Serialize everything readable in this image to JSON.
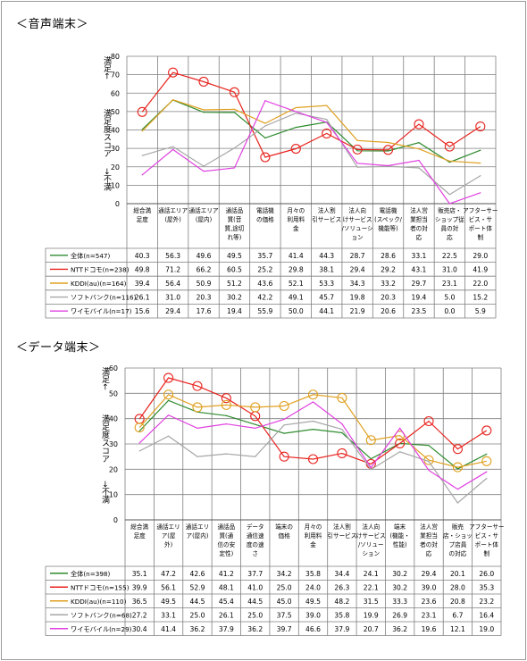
{
  "page": {
    "frame_color": "#9a9a9a"
  },
  "charts": [
    {
      "title": "＜音声端末＞",
      "ylabel_top": "満足←",
      "ylabel_mid": "満足度スコア",
      "ylabel_bot": "→不満",
      "categories": [
        [
          "総合満",
          "足度"
        ],
        [
          "通話エリア",
          "(屋外)"
        ],
        [
          "通話エリア",
          "(屋内)"
        ],
        [
          "通話品",
          "質(音",
          "質,途切",
          "れ等)"
        ],
        [
          "電話機",
          "の価格"
        ],
        [
          "月々の",
          "利用料",
          "金"
        ],
        [
          "法人割",
          "引サービス"
        ],
        [
          "法人向",
          "けサービス",
          "/ソリューシ",
          "ョン"
        ],
        [
          "電話機",
          "(スペック/",
          "機能等)"
        ],
        [
          "法人営",
          "業担当",
          "者の対",
          "応"
        ],
        [
          "販売店・",
          "ショップ従",
          "員の対",
          "応"
        ],
        [
          "アフターサー",
          "ビス・サ",
          "ポート体",
          "制"
        ]
      ],
      "chart_data": {
        "type": "line",
        "ylim": [
          0,
          80
        ],
        "yticks": [
          0,
          10,
          20,
          30,
          40,
          50,
          60,
          70,
          80
        ],
        "grid": true,
        "markers": "NTTドコモ series drawn with open circle markers",
        "series": [
          {
            "name": "全体(n=547)",
            "color": "#2e8b2e",
            "values": [
              40.3,
              56.3,
              49.6,
              49.5,
              35.7,
              41.4,
              44.3,
              28.7,
              28.6,
              33.1,
              22.5,
              29.0
            ],
            "labels": [
              "40.3",
              "56.3",
              "49.6",
              "49.5",
              "35.7",
              "41.4",
              "44.3",
              "28.7",
              "28.6",
              "33.1",
              "22.5",
              "29.0"
            ]
          },
          {
            "name": "NTTドコモ(n=238)",
            "color": "#e8231e",
            "values": [
              49.8,
              71.2,
              66.2,
              60.5,
              25.2,
              29.8,
              38.1,
              29.4,
              29.2,
              43.1,
              31.0,
              41.9
            ],
            "labels": [
              "49.8",
              "71.2",
              "66.2",
              "60.5",
              "25.2",
              "29.8",
              "38.1",
              "29.4",
              "29.2",
              "43.1",
              "31.0",
              "41.9"
            ]
          },
          {
            "name": "KDDI(au)(n=164)",
            "color": "#e0a020",
            "values": [
              39.4,
              56.4,
              50.9,
              51.2,
              43.6,
              52.1,
              53.3,
              34.3,
              33.2,
              29.7,
              23.1,
              22.0
            ],
            "labels": [
              "39.4",
              "56.4",
              "50.9",
              "51.2",
              "43.6",
              "52.1",
              "53.3",
              "34.3",
              "33.2",
              "29.7",
              "23.1",
              "22.0"
            ]
          },
          {
            "name": "ソフトバンク(n=116)",
            "color": "#a6a6a6",
            "values": [
              26.1,
              31.0,
              20.3,
              30.2,
              42.2,
              49.1,
              45.7,
              19.8,
              20.3,
              19.4,
              5.0,
              15.2
            ],
            "labels": [
              "26.1",
              "31.0",
              "20.3",
              "30.2",
              "42.2",
              "49.1",
              "45.7",
              "19.8",
              "20.3",
              "19.4",
              "5.0",
              "15.2"
            ]
          },
          {
            "name": "ワイモバイル(n=17)",
            "color": "#e040e0",
            "values": [
              15.6,
              29.4,
              17.6,
              19.4,
              55.9,
              50.0,
              44.1,
              21.9,
              20.6,
              23.5,
              0.0,
              5.9
            ],
            "labels": [
              "15.6",
              "29.4",
              "17.6",
              "19.4",
              "55.9",
              "50.0",
              "44.1",
              "21.9",
              "20.6",
              "23.5",
              "0.0",
              "5.9"
            ]
          }
        ]
      }
    },
    {
      "title": "＜データ端末＞",
      "ylabel_top": "満足←",
      "ylabel_mid": "満足度スコア",
      "ylabel_bot": "→不満",
      "categories": [
        [
          "総合満",
          "足度"
        ],
        [
          "通話エリ",
          "ア(屋",
          "外)"
        ],
        [
          "通話エリ",
          "ア(屋内)"
        ],
        [
          "通話品",
          "質(通",
          "信の安",
          "定性)"
        ],
        [
          "データ",
          "通信速",
          "度の速",
          "さ"
        ],
        [
          "端末の",
          "価格"
        ],
        [
          "月々の",
          "利用料",
          "金"
        ],
        [
          "法人割",
          "引サービス"
        ],
        [
          "法人向",
          "けサービス",
          "/ソリュー",
          "ション"
        ],
        [
          "端末",
          "(機能・",
          "性能)"
        ],
        [
          "法人営",
          "業担当",
          "者の対",
          "応"
        ],
        [
          "販売",
          "店・ショッ",
          "プ店員",
          "の対応"
        ],
        [
          "アフターサー",
          "ビス・サ",
          "ポート体",
          "制"
        ]
      ],
      "chart_data": {
        "type": "line",
        "ylim": [
          0,
          60
        ],
        "yticks": [
          0,
          10,
          20,
          30,
          40,
          50,
          60
        ],
        "grid": true,
        "markers": "NTTドコモ and KDDI(au) series drawn with open circle markers",
        "series": [
          {
            "name": "全体(n=398)",
            "color": "#2e8b2e",
            "values": [
              35.1,
              47.2,
              42.6,
              41.2,
              37.7,
              34.2,
              35.8,
              34.4,
              24.1,
              30.2,
              29.4,
              20.1,
              26.0
            ],
            "labels": [
              "35.1",
              "47.2",
              "42.6",
              "41.2",
              "37.7",
              "34.2",
              "35.8",
              "34.4",
              "24.1",
              "30.2",
              "29.4",
              "20.1",
              "26.0"
            ]
          },
          {
            "name": "NTTドコモ(n=155)",
            "color": "#e8231e",
            "values": [
              39.9,
              56.1,
              52.9,
              48.1,
              41.0,
              25.0,
              24.0,
              26.3,
              22.1,
              30.2,
              39.0,
              28.0,
              35.3
            ],
            "labels": [
              "39.9",
              "56.1",
              "52.9",
              "48.1",
              "41.0",
              "25.0",
              "24.0",
              "26.3",
              "22.1",
              "30.2",
              "39.0",
              "28.0",
              "35.3"
            ]
          },
          {
            "name": "KDDI(au)(n=110)",
            "color": "#e0a020",
            "values": [
              36.5,
              49.5,
              44.5,
              45.4,
              44.5,
              45.0,
              49.5,
              48.2,
              31.5,
              33.3,
              23.6,
              20.8,
              23.2
            ],
            "labels": [
              "36.5",
              "49.5",
              "44.5",
              "45.4",
              "44.5",
              "45.0",
              "49.5",
              "48.2",
              "31.5",
              "33.3",
              "23.6",
              "20.8",
              "23.2"
            ]
          },
          {
            "name": "ソフトバンク(n=68)",
            "color": "#a6a6a6",
            "values": [
              27.2,
              33.1,
              25.0,
              26.1,
              25.0,
              37.5,
              39.0,
              35.8,
              19.9,
              26.9,
              23.1,
              6.7,
              16.4
            ],
            "labels": [
              "27.2",
              "33.1",
              "25.0",
              "26.1",
              "25.0",
              "37.5",
              "39.0",
              "35.8",
              "19.9",
              "26.9",
              "23.1",
              "6.7",
              "16.4"
            ]
          },
          {
            "name": "ワイモバイル(n=29)",
            "color": "#e040e0",
            "values": [
              30.4,
              41.4,
              36.2,
              37.9,
              36.2,
              39.7,
              46.6,
              37.9,
              20.7,
              36.2,
              19.6,
              12.1,
              19.0
            ],
            "labels": [
              "30.4",
              "41.4",
              "36.2",
              "37.9",
              "36.2",
              "39.7",
              "46.6",
              "37.9",
              "20.7",
              "36.2",
              "19.6",
              "12.1",
              "19.0"
            ]
          }
        ]
      }
    }
  ]
}
